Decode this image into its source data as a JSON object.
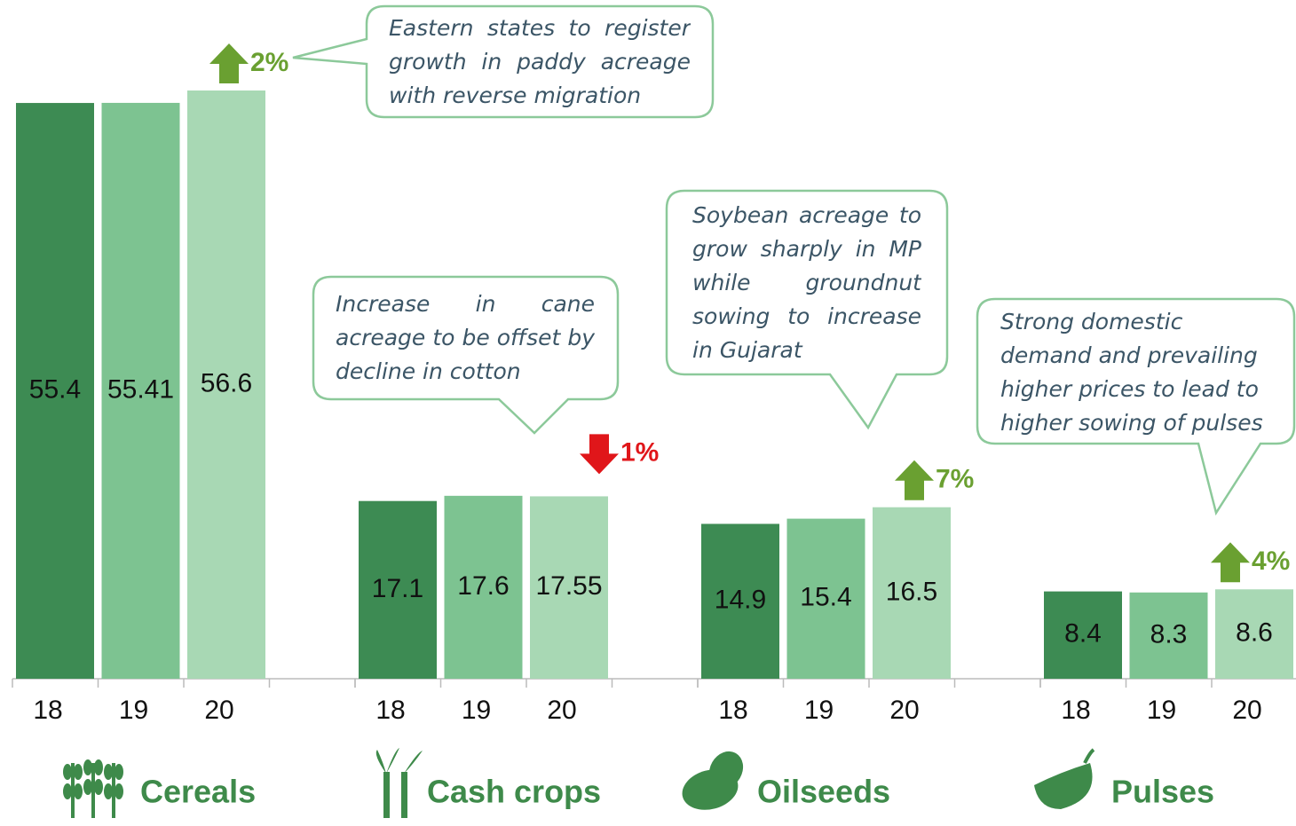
{
  "chart_data": {
    "type": "bar",
    "categories": [
      "Cereals",
      "Cash crops",
      "Oilseeds",
      "Pulses"
    ],
    "series": [
      {
        "name": "18",
        "color": "#3d8b53",
        "values": [
          55.4,
          17.1,
          14.9,
          8.4
        ]
      },
      {
        "name": "19",
        "color": "#7dc391",
        "values": [
          55.41,
          17.6,
          15.4,
          8.3
        ]
      },
      {
        "name": "20",
        "color": "#a8d8b4",
        "values": [
          56.6,
          17.55,
          16.5,
          8.6
        ]
      }
    ],
    "changes": [
      {
        "label": "2%",
        "direction": "up"
      },
      {
        "label": "1%",
        "direction": "down"
      },
      {
        "label": "7%",
        "direction": "up"
      },
      {
        "label": "4%",
        "direction": "up"
      }
    ],
    "annotations": [
      "Eastern states to register growth in paddy acreage with reverse migration",
      "Increase in cane acreage to be offset by decline in cotton",
      "Soybean acreage to grow sharply in MP while groundnut sowing to increase in Gujarat",
      "Strong domestic demand and prevailing higher prices to lead to higher sowing of pulses"
    ]
  }
}
